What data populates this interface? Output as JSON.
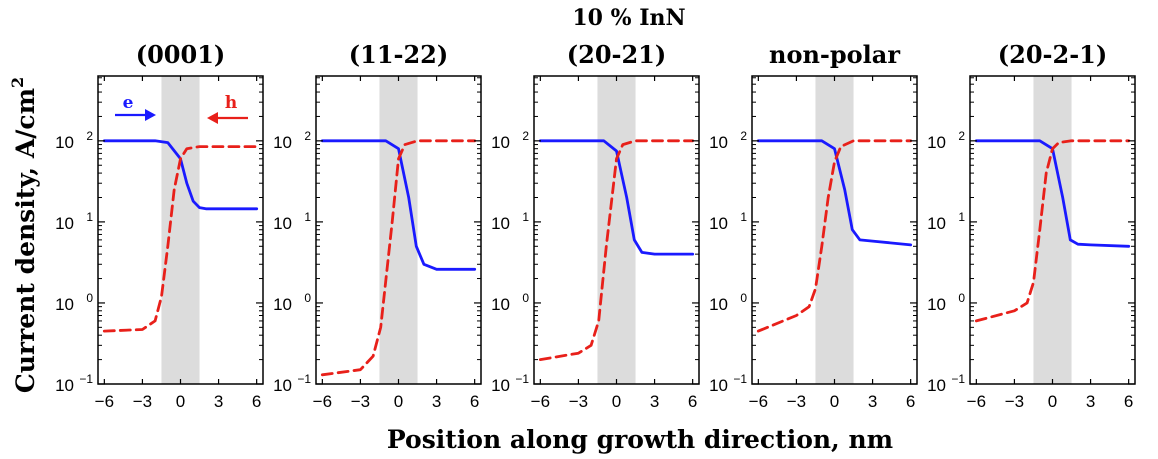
{
  "chart_data": {
    "title": "10 % InN",
    "xlabel": "Position along growth direction, nm",
    "ylabel_text": "Current density, A/cm",
    "ylabel_exponent": "2",
    "legend": {
      "e_label": "e",
      "h_label": "h",
      "e_color": "#1a1aff",
      "h_color": "#e8201a"
    },
    "shaded_region_x": [
      -1.5,
      1.5
    ],
    "xlim": [
      -6.5,
      6.5
    ],
    "ylim_log10": [
      -1,
      2.8
    ],
    "xticks": [
      -6,
      -3,
      0,
      3,
      6
    ],
    "xtick_labels": [
      "−6",
      "−3",
      "0",
      "3",
      "6"
    ],
    "yticks_log10": [
      -1,
      0,
      1,
      2
    ],
    "ytick_base": "10",
    "ytick_exponents": [
      "−1",
      "0",
      "1",
      "2"
    ],
    "panels": [
      {
        "name": "(0001)",
        "type": "line",
        "series": [
          {
            "name": "e",
            "style": "solid",
            "x": [
              -6,
              -2,
              -1,
              0,
              0.5,
              1,
              1.5,
              2,
              6
            ],
            "y": [
              100,
              100,
              95,
              60,
              30,
              18,
              15,
              14.5,
              14.5
            ]
          },
          {
            "name": "h",
            "style": "dashed",
            "x": [
              -6,
              -3,
              -2,
              -1.5,
              -1,
              -0.5,
              0,
              0.5,
              1.5,
              6
            ],
            "y": [
              0.45,
              0.47,
              0.6,
              1.2,
              5,
              25,
              60,
              80,
              85,
              85
            ]
          }
        ]
      },
      {
        "name": "(11-22)",
        "type": "line",
        "series": [
          {
            "name": "e",
            "style": "solid",
            "x": [
              -6,
              -1,
              0,
              0.8,
              1.4,
              2,
              3,
              6
            ],
            "y": [
              100,
              100,
              80,
              20,
              5,
              3,
              2.6,
              2.6
            ]
          },
          {
            "name": "h",
            "style": "dashed",
            "x": [
              -6,
              -3,
              -2,
              -1.4,
              -0.5,
              0,
              0.5,
              1.5,
              6
            ],
            "y": [
              0.13,
              0.15,
              0.22,
              0.5,
              10,
              60,
              90,
              100,
              100
            ]
          }
        ]
      },
      {
        "name": "(20-21)",
        "type": "line",
        "series": [
          {
            "name": "e",
            "style": "solid",
            "x": [
              -6,
              -1,
              0,
              0.8,
              1.4,
              2,
              3,
              6
            ],
            "y": [
              100,
              100,
              75,
              20,
              6,
              4.2,
              4,
              4
            ]
          },
          {
            "name": "h",
            "style": "dashed",
            "x": [
              -6,
              -3,
              -2,
              -1.4,
              -0.8,
              0,
              0.5,
              1.5,
              6
            ],
            "y": [
              0.2,
              0.24,
              0.3,
              0.6,
              5,
              60,
              90,
              100,
              100
            ]
          }
        ]
      },
      {
        "name": "non-polar",
        "type": "line",
        "series": [
          {
            "name": "e",
            "style": "solid",
            "x": [
              -6,
              -1,
              0,
              0.8,
              1.4,
              2,
              3,
              6
            ],
            "y": [
              100,
              100,
              80,
              25,
              8,
              6,
              5.8,
              5.2
            ]
          },
          {
            "name": "h",
            "style": "dashed",
            "x": [
              -6,
              -3,
              -2,
              -1.5,
              -1,
              -0.5,
              0,
              0.5,
              1.5,
              6
            ],
            "y": [
              0.45,
              0.7,
              0.9,
              1.5,
              5,
              20,
              55,
              85,
              100,
              100
            ]
          }
        ]
      },
      {
        "name": "(20-2-1)",
        "type": "line",
        "series": [
          {
            "name": "e",
            "style": "solid",
            "x": [
              -6,
              -1,
              0,
              0.8,
              1.4,
              2,
              3,
              6
            ],
            "y": [
              100,
              100,
              80,
              20,
              6,
              5.3,
              5.2,
              5
            ]
          },
          {
            "name": "h",
            "style": "dashed",
            "x": [
              -6,
              -3,
              -2,
              -1.5,
              -1,
              -0.5,
              0,
              0.5,
              1.5,
              6
            ],
            "y": [
              0.6,
              0.8,
              1.0,
              1.8,
              8,
              40,
              80,
              95,
              100,
              100
            ]
          }
        ]
      }
    ]
  }
}
